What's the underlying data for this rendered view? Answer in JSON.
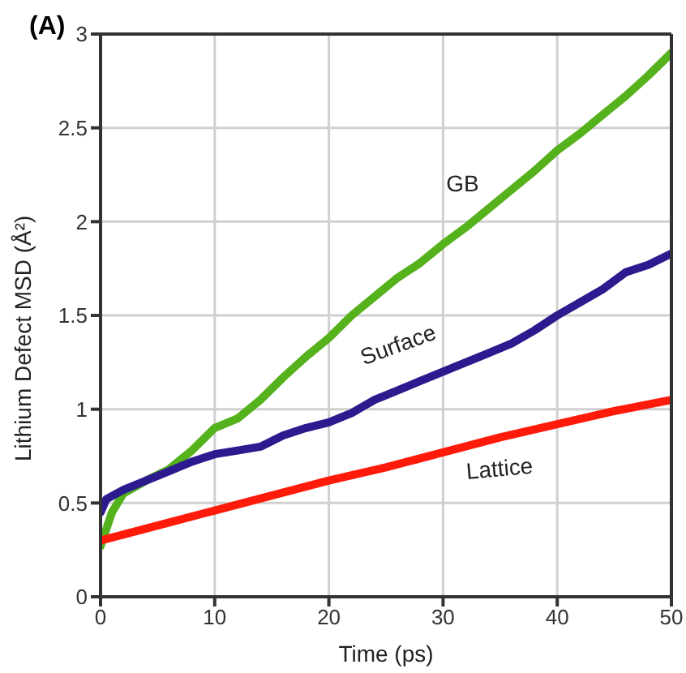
{
  "chart_data": {
    "type": "line",
    "title": "(A)",
    "xlabel": "Time (ps)",
    "ylabel": "Lithium Defect MSD (Å²)",
    "xlim": [
      0,
      50
    ],
    "xticks": [
      0,
      10,
      20,
      30,
      40,
      50
    ],
    "ylim": [
      0,
      3
    ],
    "yticks": [
      0,
      0.5,
      1,
      1.5,
      2,
      2.5,
      3
    ],
    "grid": true,
    "legend": false,
    "marker": "none",
    "line_style": "solid",
    "series": [
      {
        "name": "GB",
        "color": "#55b11c",
        "x": [
          0,
          1,
          2,
          4,
          6,
          8,
          10,
          12,
          14,
          16,
          18,
          20,
          22,
          24,
          26,
          28,
          30,
          32,
          34,
          36,
          38,
          40,
          42,
          44,
          46,
          48,
          50
        ],
        "values": [
          0.27,
          0.45,
          0.55,
          0.62,
          0.68,
          0.78,
          0.9,
          0.95,
          1.05,
          1.17,
          1.28,
          1.38,
          1.5,
          1.6,
          1.7,
          1.78,
          1.88,
          1.97,
          2.07,
          2.17,
          2.27,
          2.38,
          2.47,
          2.57,
          2.67,
          2.78,
          2.9
        ]
      },
      {
        "name": "Surface",
        "color": "#2b1b8e",
        "x": [
          0,
          0.5,
          2,
          4,
          6,
          8,
          10,
          12,
          14,
          16,
          18,
          20,
          22,
          24,
          26,
          28,
          30,
          32,
          34,
          36,
          38,
          40,
          42,
          44,
          46,
          48,
          50
        ],
        "values": [
          0.45,
          0.52,
          0.57,
          0.62,
          0.67,
          0.72,
          0.76,
          0.78,
          0.8,
          0.86,
          0.9,
          0.93,
          0.98,
          1.05,
          1.1,
          1.15,
          1.2,
          1.25,
          1.3,
          1.35,
          1.42,
          1.5,
          1.57,
          1.64,
          1.73,
          1.77,
          1.83
        ]
      },
      {
        "name": "Lattice",
        "color": "#ff1a0a",
        "x": [
          0,
          5,
          10,
          15,
          20,
          25,
          30,
          35,
          40,
          45,
          50
        ],
        "values": [
          0.3,
          0.38,
          0.46,
          0.54,
          0.62,
          0.69,
          0.77,
          0.85,
          0.92,
          0.99,
          1.05
        ]
      }
    ]
  }
}
